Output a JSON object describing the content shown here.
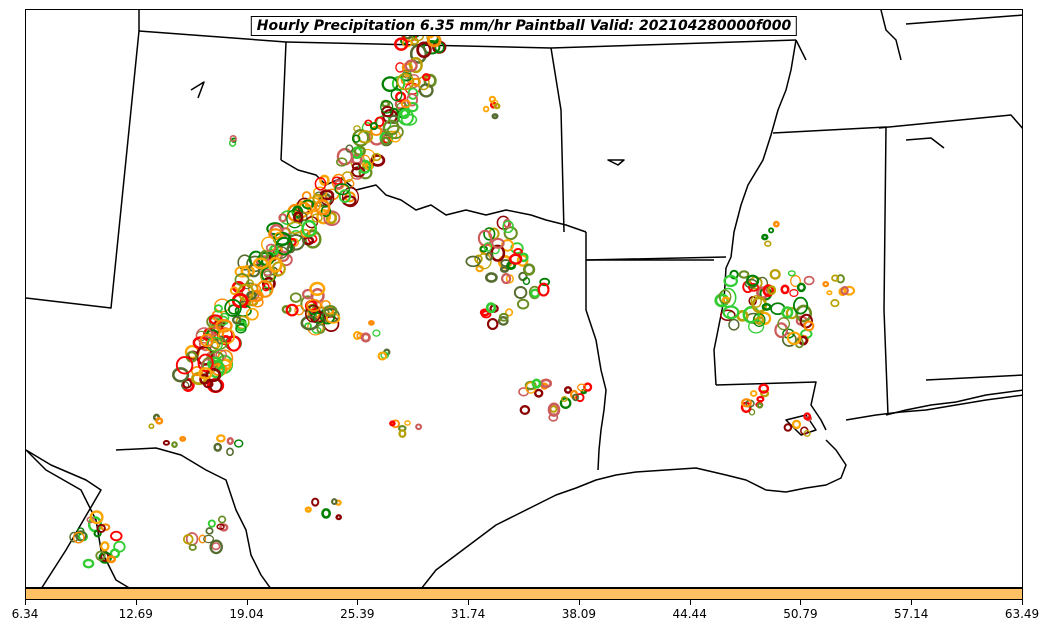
{
  "title": "Hourly Precipitation 6.35 mm/hr Paintball Valid: 202104280000f000",
  "colorbar": {
    "fill_color": "#ffc164",
    "tick_labels": [
      "6.34",
      "12.69",
      "19.04",
      "25.39",
      "31.74",
      "38.09",
      "44.44",
      "50.79",
      "57.14",
      "63.49"
    ]
  },
  "colors": {
    "paint": [
      "#ff8c00",
      "#ff0000",
      "#8b0000",
      "#6b8e23",
      "#008000",
      "#32cd32",
      "#b8a000",
      "#ffa500",
      "#cd5c5c",
      "#556b2f"
    ],
    "boundaries": "#000000"
  }
}
